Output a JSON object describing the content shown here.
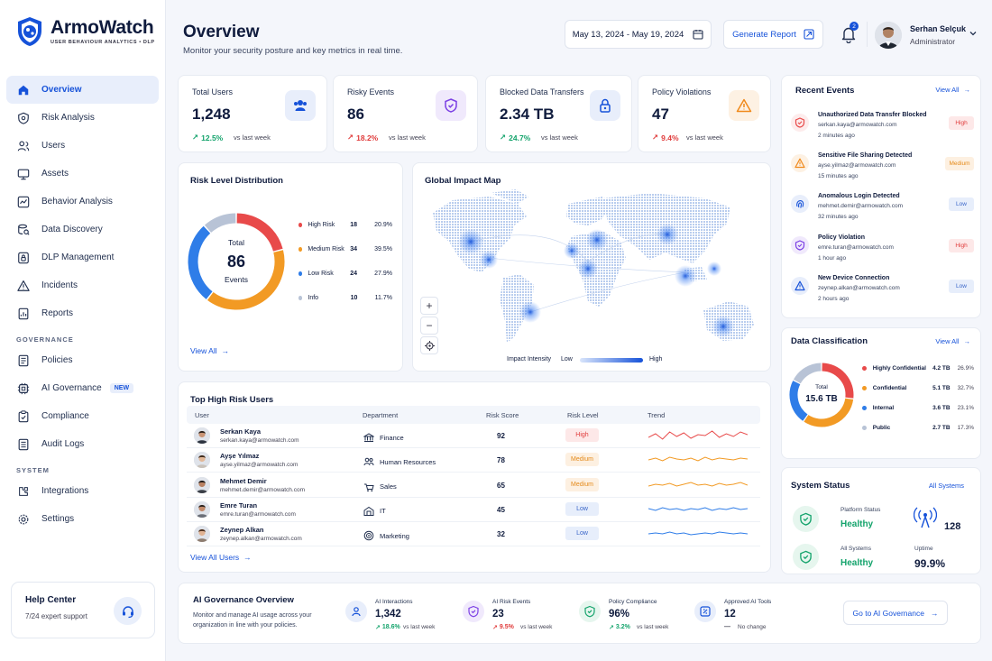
{
  "brand": {
    "name": "ArmoWatch",
    "tagline": "USER BEHAVIOUR ANALYTICS • DLP"
  },
  "nav": {
    "main": [
      {
        "label": "Overview",
        "icon": "home-icon",
        "active": true
      },
      {
        "label": "Risk Analysis",
        "icon": "shield-icon"
      },
      {
        "label": "Users",
        "icon": "users-icon"
      },
      {
        "label": "Assets",
        "icon": "monitor-icon"
      },
      {
        "label": "Behavior Analysis",
        "icon": "behavior-icon"
      },
      {
        "label": "Data Discovery",
        "icon": "discovery-icon"
      },
      {
        "label": "DLP Management",
        "icon": "dlp-icon"
      },
      {
        "label": "Incidents",
        "icon": "warning-icon"
      },
      {
        "label": "Reports",
        "icon": "report-icon"
      }
    ],
    "governance_title": "GOVERNANCE",
    "governance": [
      {
        "label": "Policies",
        "icon": "policy-icon"
      },
      {
        "label": "AI Governance",
        "icon": "ai-icon",
        "badge": "NEW"
      },
      {
        "label": "Compliance",
        "icon": "compliance-icon"
      },
      {
        "label": "Audit Logs",
        "icon": "log-icon"
      }
    ],
    "system_title": "SYSTEM",
    "system": [
      {
        "label": "Integrations",
        "icon": "integration-icon"
      },
      {
        "label": "Settings",
        "icon": "gear-icon"
      }
    ]
  },
  "help": {
    "title": "Help Center",
    "subtitle": "7/24 expert support"
  },
  "header": {
    "title": "Overview",
    "subtitle": "Monitor your security posture and key metrics in real time.",
    "date_range": "May 13, 2024 - May 19, 2024",
    "generate_report": "Generate Report",
    "notification_count": "2",
    "user_name": "Serhan Selçuk",
    "user_role": "Administrator"
  },
  "kpis": [
    {
      "title": "Total Users",
      "value": "1,248",
      "trend": "12.5%",
      "direction": "up",
      "trend_label": "vs last week",
      "icon": "users-icon",
      "color": "#1652d9",
      "bg": "#e8eefb"
    },
    {
      "title": "Risky Events",
      "value": "86",
      "trend": "18.2%",
      "direction": "down",
      "trend_label": "vs last week",
      "icon": "shield-icon",
      "color": "#7b3fe4",
      "bg": "#f0e9fc"
    },
    {
      "title": "Blocked Data Transfers",
      "value": "2.34 TB",
      "trend": "24.7%",
      "direction": "up",
      "trend_label": "vs last week",
      "icon": "lock-icon",
      "color": "#1652d9",
      "bg": "#e8eefb"
    },
    {
      "title": "Policy Violations",
      "value": "47",
      "trend": "9.4%",
      "direction": "down",
      "trend_label": "vs last week",
      "icon": "warning-icon",
      "color": "#f08a1c",
      "bg": "#fdf1e3"
    }
  ],
  "risk_distribution": {
    "title": "Risk Level Distribution",
    "center_label": "Total",
    "center_value": "86",
    "center_unit": "Events",
    "view_all": "View All",
    "chart_data": {
      "type": "pie",
      "series": [
        {
          "name": "High Risk",
          "value": 18,
          "percent": "20.9%",
          "color": "#e84a4a"
        },
        {
          "name": "Medium Risk",
          "value": 34,
          "percent": "39.5%",
          "color": "#f29a24"
        },
        {
          "name": "Low Risk",
          "value": 24,
          "percent": "27.9%",
          "color": "#2f7de8"
        },
        {
          "name": "Info",
          "value": 10,
          "percent": "11.7%",
          "color": "#b8c3d6"
        }
      ]
    }
  },
  "map": {
    "title": "Global Impact Map",
    "legend_title": "Impact Intensity",
    "legend_low": "Low",
    "legend_high": "High",
    "zoom_in": "+",
    "zoom_out": "−"
  },
  "top_users": {
    "title": "Top High Risk Users",
    "columns": [
      "User",
      "Department",
      "Risk Score",
      "Risk Level",
      "Trend"
    ],
    "rows": [
      {
        "name": "Serkan Kaya",
        "email": "serkan.kaya@armowatch.com",
        "dept": "Finance",
        "dept_icon": "bank-icon",
        "score": "92",
        "level": "High",
        "trend_color": "#e84a4a",
        "trend": [
          8,
          12,
          6,
          14,
          9,
          13,
          7,
          11,
          10,
          15,
          8,
          12,
          9,
          14,
          11
        ]
      },
      {
        "name": "Ayşe Yılmaz",
        "email": "ayse.yilmaz@armowatch.com",
        "dept": "Human Resources",
        "dept_icon": "people-icon",
        "score": "78",
        "level": "Medium",
        "trend_color": "#f29a24",
        "trend": [
          10,
          12,
          9,
          13,
          11,
          10,
          12,
          9,
          13,
          10,
          12,
          11,
          10,
          12,
          11
        ]
      },
      {
        "name": "Mehmet Demir",
        "email": "mehmet.demir@armowatch.com",
        "dept": "Sales",
        "dept_icon": "sales-icon",
        "score": "65",
        "level": "Medium",
        "trend_color": "#f29a24",
        "trend": [
          9,
          11,
          10,
          12,
          9,
          11,
          13,
          10,
          11,
          9,
          12,
          10,
          11,
          13,
          10
        ]
      },
      {
        "name": "Emre Turan",
        "email": "emre.turan@armowatch.com",
        "dept": "IT",
        "dept_icon": "server-icon",
        "score": "45",
        "level": "Low",
        "trend_color": "#2f7de8",
        "trend": [
          11,
          9,
          12,
          10,
          11,
          9,
          11,
          10,
          12,
          9,
          11,
          10,
          12,
          10,
          11
        ]
      },
      {
        "name": "Zeynep Alkan",
        "email": "zeynep.alkan@armowatch.com",
        "dept": "Marketing",
        "dept_icon": "target-icon",
        "score": "32",
        "level": "Low",
        "trend_color": "#2f7de8",
        "trend": [
          10,
          11,
          10,
          12,
          10,
          11,
          9,
          10,
          11,
          10,
          12,
          11,
          10,
          11,
          10
        ]
      }
    ],
    "view_all": "View All Users"
  },
  "recent_events": {
    "title": "Recent Events",
    "view_all": "View All",
    "items": [
      {
        "title": "Unauthorized Data Transfer Blocked",
        "meta": "serkan.kaya@armowatch.com",
        "time": "2 minutes ago",
        "level": "High",
        "icon": "shield-icon",
        "color": "#e84a4a",
        "bg": "#fdecec"
      },
      {
        "title": "Sensitive File Sharing Detected",
        "meta": "ayse.yilmaz@armowatch.com",
        "time": "15 minutes ago",
        "level": "Medium",
        "icon": "warning-icon",
        "color": "#f08a1c",
        "bg": "#fdf1e3"
      },
      {
        "title": "Anomalous Login Detected",
        "meta": "mehmet.demir@armowatch.com",
        "time": "32 minutes ago",
        "level": "Low",
        "icon": "fingerprint-icon",
        "color": "#1652d9",
        "bg": "#e8eefb"
      },
      {
        "title": "Policy Violation",
        "meta": "emre.turan@armowatch.com",
        "time": "1 hour ago",
        "level": "High",
        "icon": "shield-icon",
        "color": "#7b3fe4",
        "bg": "#f0e9fc"
      },
      {
        "title": "New Device Connection",
        "meta": "zeynep.alkan@armowatch.com",
        "time": "2 hours ago",
        "level": "Low",
        "icon": "warning-icon",
        "color": "#1652d9",
        "bg": "#e8eefb"
      }
    ]
  },
  "data_classification": {
    "title": "Data Classification",
    "view_all": "View All",
    "center_label": "Total",
    "center_value": "15.6 TB",
    "chart_data": {
      "type": "pie",
      "series": [
        {
          "name": "Highly Confidential",
          "value": 4.2,
          "size": "4.2 TB",
          "percent": "26.9%",
          "color": "#e84a4a"
        },
        {
          "name": "Confidential",
          "value": 5.1,
          "size": "5.1 TB",
          "percent": "32.7%",
          "color": "#f29a24"
        },
        {
          "name": "Internal",
          "value": 3.6,
          "size": "3.6 TB",
          "percent": "23.1%",
          "color": "#2f7de8"
        },
        {
          "name": "Public",
          "value": 2.7,
          "size": "2.7 TB",
          "percent": "17.3%",
          "color": "#b8c3d6"
        }
      ]
    }
  },
  "system_status": {
    "title": "System Status",
    "link": "All Systems",
    "platform_label": "Platform Status",
    "platform_value": "Healthy",
    "systems_label": "All Systems",
    "systems_value": "Healthy",
    "signal_value": "128",
    "uptime_label": "Uptime",
    "uptime_value": "99.9%"
  },
  "ai_overview": {
    "title": "AI Governance Overview",
    "description": "Monitor and manage AI usage across your organization in line with your policies.",
    "button": "Go to AI Governance",
    "metrics": [
      {
        "label": "AI Interactions",
        "value": "1,342",
        "trend": "18.6%",
        "direction": "up",
        "trend_label": "vs last week",
        "icon": "people-icon",
        "color": "#1652d9",
        "bg": "#e8eefb"
      },
      {
        "label": "AI Risk Events",
        "value": "23",
        "trend": "9.5%",
        "direction": "down",
        "trend_label": "vs last week",
        "icon": "shield-icon",
        "color": "#7b3fe4",
        "bg": "#f0e9fc"
      },
      {
        "label": "Policy Compliance",
        "value": "96%",
        "trend": "3.2%",
        "direction": "up",
        "trend_label": "vs last week",
        "icon": "check-shield-icon",
        "color": "#13a36b",
        "bg": "#e6f6ee"
      },
      {
        "label": "Approved AI Tools",
        "value": "12",
        "trend": "—",
        "direction": "flat",
        "trend_label": "No change",
        "icon": "tools-icon",
        "color": "#1652d9",
        "bg": "#e8eefb"
      }
    ]
  }
}
